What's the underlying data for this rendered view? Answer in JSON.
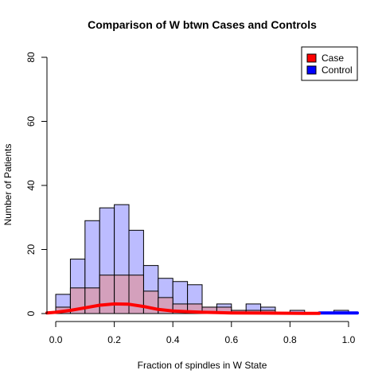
{
  "chart_data": {
    "type": "bar",
    "title": "Comparison of W btwn Cases and Controls",
    "xlabel": "Fraction of spindles in W State",
    "ylabel": "Number of Patients",
    "xlim": [
      -0.03,
      1.03
    ],
    "ylim": [
      0,
      80
    ],
    "x_ticks": [
      "0.0",
      "0.2",
      "0.4",
      "0.6",
      "0.8",
      "1.0"
    ],
    "y_ticks": [
      "0",
      "20",
      "40",
      "60",
      "80"
    ],
    "bin_width": 0.05,
    "bin_starts": [
      0.0,
      0.05,
      0.1,
      0.15,
      0.2,
      0.25,
      0.3,
      0.35,
      0.4,
      0.45,
      0.5,
      0.55,
      0.6,
      0.65,
      0.7,
      0.75,
      0.8,
      0.85,
      0.9,
      0.95
    ],
    "series": [
      {
        "name": "Control",
        "color": "#0000ff",
        "fill": "#bcbcff",
        "values": [
          6,
          17,
          29,
          33,
          34,
          26,
          15,
          11,
          10,
          9,
          2,
          3,
          1,
          3,
          2,
          0,
          1,
          0,
          0,
          1
        ],
        "density_curve": {
          "color": "#0000ff",
          "x": [
            0.9,
            0.95,
            1.0,
            1.03
          ],
          "y": [
            0.2,
            0.2,
            0.2,
            0.2
          ]
        }
      },
      {
        "name": "Case",
        "color": "#ff0000",
        "fill": "#d4a0bc",
        "values": [
          2,
          8,
          8,
          12,
          12,
          12,
          7,
          5,
          3,
          3,
          2,
          2,
          1,
          1,
          1,
          0,
          0,
          0,
          0,
          0
        ],
        "density_curve": {
          "color": "#ff0000",
          "x": [
            -0.03,
            0.0,
            0.05,
            0.1,
            0.15,
            0.2,
            0.25,
            0.3,
            0.35,
            0.4,
            0.45,
            0.5,
            0.55,
            0.6,
            0.7,
            0.8,
            0.9
          ],
          "y": [
            0.2,
            0.4,
            1.0,
            1.8,
            2.6,
            3.0,
            2.9,
            2.2,
            1.3,
            0.8,
            0.6,
            0.4,
            0.3,
            0.2,
            0.15,
            0.1,
            0.05
          ]
        }
      }
    ],
    "grid": false,
    "legend": {
      "position": "top-right",
      "entries": [
        {
          "label": "Case",
          "color": "#ff0000"
        },
        {
          "label": "Control",
          "color": "#0000ff"
        }
      ]
    }
  }
}
